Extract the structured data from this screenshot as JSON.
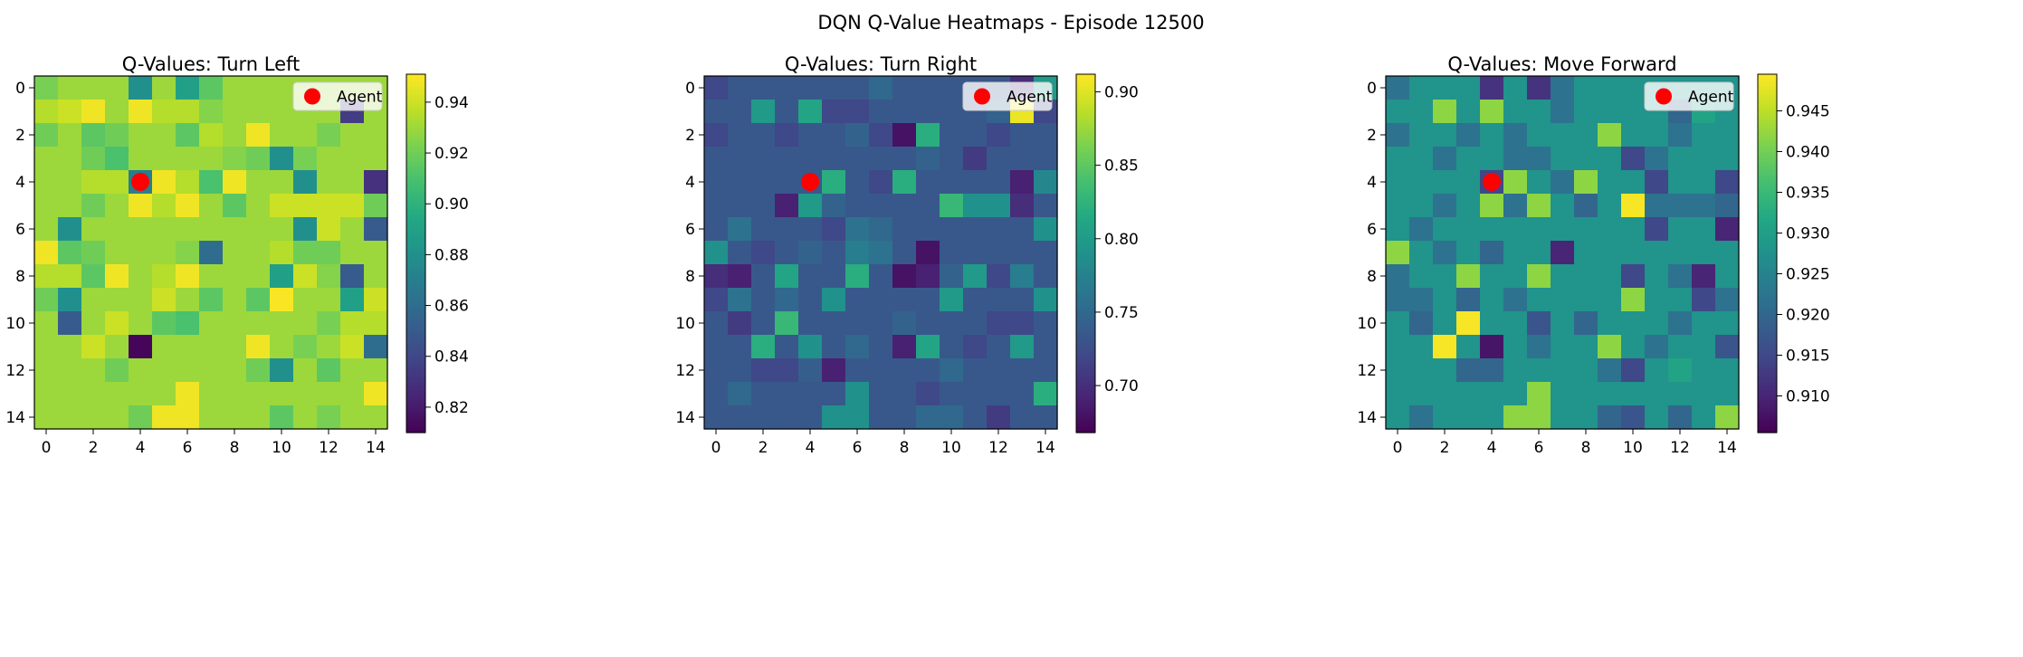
{
  "figure": {
    "suptitle": "DQN Q-Value Heatmaps - Episode 12500"
  },
  "chart_data": [
    {
      "type": "heatmap",
      "title": "Q-Values: Turn Left",
      "colormap": "viridis",
      "vmin": 0.81,
      "vmax": 0.951,
      "colorbar_ticks": [
        0.82,
        0.84,
        0.86,
        0.88,
        0.9,
        0.92,
        0.94
      ],
      "colorbar_tick_labels": [
        "0.82",
        "0.84",
        "0.86",
        "0.88",
        "0.90",
        "0.92",
        "0.94"
      ],
      "x_ticks": [
        "0",
        "2",
        "4",
        "6",
        "8",
        "10",
        "12",
        "14"
      ],
      "y_ticks": [
        "0",
        "2",
        "4",
        "6",
        "8",
        "10",
        "12",
        "14"
      ],
      "agent": {
        "x": 4,
        "y": 4,
        "color": "#ff0000",
        "legend_label": "Agent"
      },
      "legend_position": "upper-right",
      "values": [
        [
          0.922,
          0.93,
          0.93,
          0.93,
          0.88,
          0.93,
          0.89,
          0.915,
          0.93,
          0.93,
          0.93,
          0.93,
          0.93,
          0.93,
          0.93
        ],
        [
          0.935,
          0.94,
          0.948,
          0.93,
          0.948,
          0.935,
          0.935,
          0.925,
          0.93,
          0.93,
          0.93,
          0.93,
          0.93,
          0.835,
          0.93
        ],
        [
          0.92,
          0.93,
          0.915,
          0.92,
          0.93,
          0.93,
          0.915,
          0.935,
          0.93,
          0.948,
          0.93,
          0.93,
          0.922,
          0.93,
          0.93
        ],
        [
          0.93,
          0.93,
          0.92,
          0.91,
          0.93,
          0.93,
          0.93,
          0.93,
          0.925,
          0.92,
          0.88,
          0.922,
          0.93,
          0.93,
          0.93
        ],
        [
          0.93,
          0.93,
          0.935,
          0.935,
          0.87,
          0.948,
          0.935,
          0.91,
          0.948,
          0.93,
          0.93,
          0.88,
          0.93,
          0.93,
          0.83
        ],
        [
          0.93,
          0.93,
          0.92,
          0.93,
          0.948,
          0.935,
          0.948,
          0.93,
          0.915,
          0.93,
          0.94,
          0.94,
          0.94,
          0.94,
          0.92
        ],
        [
          0.93,
          0.88,
          0.93,
          0.93,
          0.93,
          0.93,
          0.93,
          0.93,
          0.93,
          0.93,
          0.93,
          0.88,
          0.94,
          0.93,
          0.85
        ],
        [
          0.948,
          0.915,
          0.92,
          0.93,
          0.93,
          0.93,
          0.925,
          0.86,
          0.93,
          0.93,
          0.935,
          0.92,
          0.92,
          0.93,
          0.93
        ],
        [
          0.935,
          0.935,
          0.915,
          0.948,
          0.93,
          0.935,
          0.948,
          0.93,
          0.93,
          0.93,
          0.89,
          0.94,
          0.925,
          0.85,
          0.93
        ],
        [
          0.92,
          0.88,
          0.93,
          0.93,
          0.93,
          0.94,
          0.93,
          0.915,
          0.93,
          0.915,
          0.95,
          0.93,
          0.93,
          0.89,
          0.94
        ],
        [
          0.93,
          0.85,
          0.93,
          0.94,
          0.93,
          0.915,
          0.91,
          0.93,
          0.93,
          0.93,
          0.93,
          0.93,
          0.922,
          0.935,
          0.935
        ],
        [
          0.93,
          0.93,
          0.94,
          0.93,
          0.812,
          0.93,
          0.93,
          0.93,
          0.93,
          0.948,
          0.93,
          0.922,
          0.93,
          0.94,
          0.86
        ],
        [
          0.93,
          0.93,
          0.93,
          0.92,
          0.93,
          0.93,
          0.93,
          0.93,
          0.93,
          0.92,
          0.88,
          0.93,
          0.915,
          0.93,
          0.93
        ],
        [
          0.93,
          0.93,
          0.93,
          0.93,
          0.93,
          0.93,
          0.948,
          0.93,
          0.93,
          0.93,
          0.93,
          0.93,
          0.93,
          0.93,
          0.948
        ],
        [
          0.93,
          0.93,
          0.93,
          0.93,
          0.92,
          0.948,
          0.948,
          0.93,
          0.93,
          0.93,
          0.915,
          0.93,
          0.922,
          0.93,
          0.93
        ]
      ]
    },
    {
      "type": "heatmap",
      "title": "Q-Values: Turn Right",
      "colormap": "viridis",
      "vmin": 0.668,
      "vmax": 0.912,
      "colorbar_ticks": [
        0.7,
        0.75,
        0.8,
        0.85,
        0.9
      ],
      "colorbar_tick_labels": [
        "0.70",
        "0.75",
        "0.80",
        "0.85",
        "0.90"
      ],
      "x_ticks": [
        "0",
        "2",
        "4",
        "6",
        "8",
        "10",
        "12",
        "14"
      ],
      "y_ticks": [
        "0",
        "2",
        "4",
        "6",
        "8",
        "10",
        "12",
        "14"
      ],
      "agent": {
        "x": 4,
        "y": 4,
        "color": "#ff0000",
        "legend_label": "Agent"
      },
      "legend_position": "upper-right",
      "values": [
        [
          0.72,
          0.735,
          0.735,
          0.735,
          0.735,
          0.735,
          0.735,
          0.75,
          0.735,
          0.735,
          0.735,
          0.735,
          0.735,
          0.7,
          0.8
        ],
        [
          0.735,
          0.735,
          0.8,
          0.735,
          0.81,
          0.72,
          0.72,
          0.735,
          0.735,
          0.735,
          0.735,
          0.735,
          0.745,
          0.905,
          0.72
        ],
        [
          0.72,
          0.735,
          0.735,
          0.72,
          0.735,
          0.735,
          0.745,
          0.72,
          0.68,
          0.82,
          0.735,
          0.735,
          0.72,
          0.735,
          0.735
        ],
        [
          0.735,
          0.735,
          0.735,
          0.735,
          0.735,
          0.735,
          0.735,
          0.735,
          0.735,
          0.745,
          0.735,
          0.71,
          0.735,
          0.735,
          0.735
        ],
        [
          0.735,
          0.735,
          0.735,
          0.735,
          0.735,
          0.82,
          0.735,
          0.72,
          0.82,
          0.735,
          0.735,
          0.735,
          0.735,
          0.69,
          0.78
        ],
        [
          0.735,
          0.735,
          0.735,
          0.69,
          0.8,
          0.745,
          0.735,
          0.735,
          0.735,
          0.735,
          0.83,
          0.79,
          0.79,
          0.7,
          0.735
        ],
        [
          0.735,
          0.76,
          0.735,
          0.735,
          0.735,
          0.72,
          0.76,
          0.75,
          0.735,
          0.735,
          0.735,
          0.735,
          0.735,
          0.735,
          0.79
        ],
        [
          0.79,
          0.735,
          0.72,
          0.735,
          0.745,
          0.735,
          0.77,
          0.76,
          0.735,
          0.68,
          0.735,
          0.735,
          0.735,
          0.735,
          0.735
        ],
        [
          0.7,
          0.69,
          0.735,
          0.81,
          0.735,
          0.735,
          0.82,
          0.735,
          0.68,
          0.69,
          0.745,
          0.8,
          0.72,
          0.77,
          0.735
        ],
        [
          0.72,
          0.76,
          0.735,
          0.75,
          0.735,
          0.79,
          0.735,
          0.735,
          0.735,
          0.735,
          0.8,
          0.735,
          0.735,
          0.735,
          0.79
        ],
        [
          0.735,
          0.71,
          0.735,
          0.83,
          0.735,
          0.735,
          0.735,
          0.735,
          0.745,
          0.735,
          0.735,
          0.735,
          0.72,
          0.72,
          0.735
        ],
        [
          0.735,
          0.735,
          0.82,
          0.735,
          0.79,
          0.735,
          0.75,
          0.735,
          0.69,
          0.81,
          0.735,
          0.72,
          0.735,
          0.8,
          0.735
        ],
        [
          0.735,
          0.735,
          0.72,
          0.72,
          0.74,
          0.69,
          0.735,
          0.735,
          0.735,
          0.735,
          0.75,
          0.735,
          0.735,
          0.735,
          0.735
        ],
        [
          0.735,
          0.75,
          0.735,
          0.735,
          0.735,
          0.735,
          0.79,
          0.735,
          0.735,
          0.72,
          0.735,
          0.735,
          0.735,
          0.735,
          0.82
        ],
        [
          0.735,
          0.735,
          0.735,
          0.735,
          0.735,
          0.79,
          0.79,
          0.735,
          0.735,
          0.75,
          0.75,
          0.735,
          0.71,
          0.735,
          0.735
        ]
      ]
    },
    {
      "type": "heatmap",
      "title": "Q-Values: Move Forward",
      "colormap": "viridis",
      "vmin": 0.9055,
      "vmax": 0.9495,
      "colorbar_ticks": [
        0.91,
        0.915,
        0.92,
        0.925,
        0.93,
        0.935,
        0.94,
        0.945
      ],
      "colorbar_tick_labels": [
        "0.910",
        "0.915",
        "0.920",
        "0.925",
        "0.930",
        "0.935",
        "0.940",
        "0.945"
      ],
      "x_ticks": [
        "0",
        "2",
        "4",
        "6",
        "8",
        "10",
        "12",
        "14"
      ],
      "y_ticks": [
        "0",
        "2",
        "4",
        "6",
        "8",
        "10",
        "12",
        "14"
      ],
      "agent": {
        "x": 4,
        "y": 4,
        "color": "#ff0000",
        "legend_label": "Agent"
      },
      "legend_position": "upper-right",
      "values": [
        [
          0.922,
          0.928,
          0.928,
          0.928,
          0.912,
          0.928,
          0.912,
          0.922,
          0.928,
          0.928,
          0.928,
          0.928,
          0.928,
          0.928,
          0.928
        ],
        [
          0.928,
          0.928,
          0.942,
          0.928,
          0.942,
          0.928,
          0.928,
          0.922,
          0.928,
          0.928,
          0.928,
          0.928,
          0.92,
          0.931,
          0.928
        ],
        [
          0.922,
          0.928,
          0.928,
          0.922,
          0.928,
          0.922,
          0.928,
          0.928,
          0.928,
          0.942,
          0.928,
          0.928,
          0.922,
          0.928,
          0.928
        ],
        [
          0.928,
          0.928,
          0.922,
          0.928,
          0.928,
          0.922,
          0.922,
          0.928,
          0.928,
          0.928,
          0.915,
          0.922,
          0.928,
          0.928,
          0.928
        ],
        [
          0.928,
          0.928,
          0.928,
          0.928,
          0.915,
          0.942,
          0.928,
          0.922,
          0.942,
          0.928,
          0.928,
          0.915,
          0.928,
          0.928,
          0.915
        ],
        [
          0.928,
          0.928,
          0.922,
          0.928,
          0.942,
          0.922,
          0.942,
          0.928,
          0.92,
          0.928,
          0.949,
          0.922,
          0.922,
          0.922,
          0.92
        ],
        [
          0.928,
          0.922,
          0.928,
          0.928,
          0.928,
          0.928,
          0.928,
          0.928,
          0.928,
          0.928,
          0.928,
          0.915,
          0.928,
          0.928,
          0.91
        ],
        [
          0.942,
          0.928,
          0.922,
          0.928,
          0.92,
          0.928,
          0.928,
          0.91,
          0.928,
          0.928,
          0.928,
          0.928,
          0.928,
          0.928,
          0.928
        ],
        [
          0.922,
          0.928,
          0.928,
          0.942,
          0.928,
          0.928,
          0.942,
          0.928,
          0.928,
          0.928,
          0.915,
          0.928,
          0.922,
          0.91,
          0.928
        ],
        [
          0.922,
          0.922,
          0.928,
          0.92,
          0.928,
          0.922,
          0.928,
          0.928,
          0.928,
          0.928,
          0.942,
          0.928,
          0.928,
          0.915,
          0.922
        ],
        [
          0.928,
          0.92,
          0.928,
          0.949,
          0.928,
          0.928,
          0.917,
          0.928,
          0.92,
          0.928,
          0.928,
          0.928,
          0.922,
          0.928,
          0.928
        ],
        [
          0.928,
          0.928,
          0.949,
          0.928,
          0.908,
          0.928,
          0.922,
          0.928,
          0.928,
          0.942,
          0.928,
          0.922,
          0.928,
          0.928,
          0.917
        ],
        [
          0.928,
          0.928,
          0.928,
          0.92,
          0.92,
          0.928,
          0.928,
          0.928,
          0.928,
          0.922,
          0.915,
          0.928,
          0.931,
          0.928,
          0.928
        ],
        [
          0.928,
          0.928,
          0.928,
          0.928,
          0.928,
          0.928,
          0.942,
          0.928,
          0.928,
          0.928,
          0.928,
          0.928,
          0.928,
          0.928,
          0.928
        ],
        [
          0.928,
          0.922,
          0.928,
          0.928,
          0.928,
          0.942,
          0.942,
          0.928,
          0.928,
          0.92,
          0.917,
          0.928,
          0.92,
          0.928,
          0.942
        ]
      ]
    }
  ]
}
